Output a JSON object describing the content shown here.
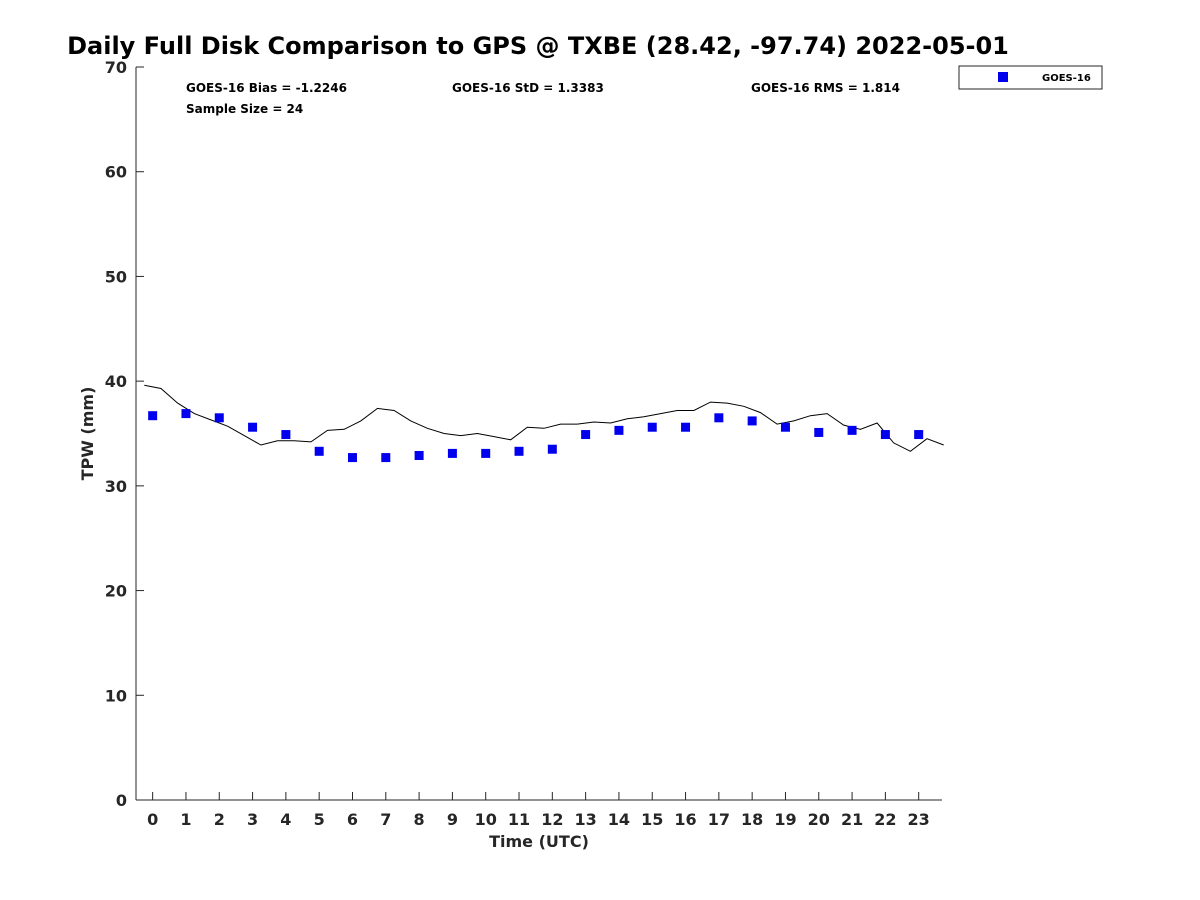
{
  "chart_data": {
    "type": "scatter",
    "title": "Daily Full Disk Comparison to GPS @ TXBE (28.42, -97.74) 2022-05-01",
    "xlabel": "Time (UTC)",
    "ylabel": "TPW (mm)",
    "xlim": [
      -0.5,
      23.7
    ],
    "ylim": [
      0,
      70
    ],
    "xticks": [
      0,
      1,
      2,
      3,
      4,
      5,
      6,
      7,
      8,
      9,
      10,
      11,
      12,
      13,
      14,
      15,
      16,
      17,
      18,
      19,
      20,
      21,
      22,
      23
    ],
    "yticks": [
      0,
      10,
      20,
      30,
      40,
      50,
      60,
      70
    ],
    "grid": false,
    "legend_position": "outside-top-right",
    "stats": {
      "bias": "GOES-16 Bias = -1.2246",
      "std": "GOES-16 StD = 1.3383",
      "rms": "GOES-16 RMS = 1.814",
      "sample": "Sample Size = 24"
    },
    "series": [
      {
        "name": "GOES-16",
        "kind": "markers",
        "color": "#0000ee",
        "x": [
          0,
          1,
          2,
          3,
          4,
          5,
          6,
          7,
          8,
          9,
          10,
          11,
          12,
          13,
          14,
          15,
          16,
          17,
          18,
          19,
          20,
          21,
          22,
          23
        ],
        "y": [
          36.7,
          36.9,
          36.5,
          35.6,
          34.9,
          33.3,
          32.7,
          32.7,
          32.9,
          33.1,
          33.1,
          33.3,
          33.5,
          34.9,
          35.3,
          35.6,
          35.6,
          36.5,
          36.2,
          35.6,
          35.1,
          35.3,
          34.9,
          34.9
        ]
      },
      {
        "kind": "line",
        "color": "#000000",
        "x": [
          -0.25,
          0.25,
          0.75,
          1.25,
          1.75,
          2.25,
          2.75,
          3.25,
          3.75,
          4.25,
          4.75,
          5.25,
          5.75,
          6.25,
          6.75,
          7.25,
          7.75,
          8.25,
          8.75,
          9.25,
          9.75,
          10.25,
          10.75,
          11.25,
          11.75,
          12.25,
          12.75,
          13.25,
          13.75,
          14.25,
          14.75,
          15.25,
          15.75,
          16.25,
          16.75,
          17.25,
          17.75,
          18.25,
          18.75,
          19.25,
          19.75,
          20.25,
          20.75,
          21.25,
          21.75,
          22.25,
          22.75,
          23.25,
          23.75
        ],
        "y": [
          39.6,
          39.3,
          37.9,
          36.9,
          36.3,
          35.7,
          34.8,
          33.9,
          34.3,
          34.3,
          34.2,
          35.3,
          35.4,
          36.2,
          37.4,
          37.2,
          36.2,
          35.5,
          35.0,
          34.8,
          35.0,
          34.7,
          34.4,
          35.6,
          35.5,
          35.9,
          35.9,
          36.1,
          36.0,
          36.4,
          36.6,
          36.9,
          37.2,
          37.2,
          38.0,
          37.9,
          37.6,
          37.0,
          35.9,
          36.2,
          36.7,
          36.9,
          35.8,
          35.4,
          36.0,
          34.1,
          33.3,
          34.5,
          33.9
        ]
      }
    ]
  }
}
